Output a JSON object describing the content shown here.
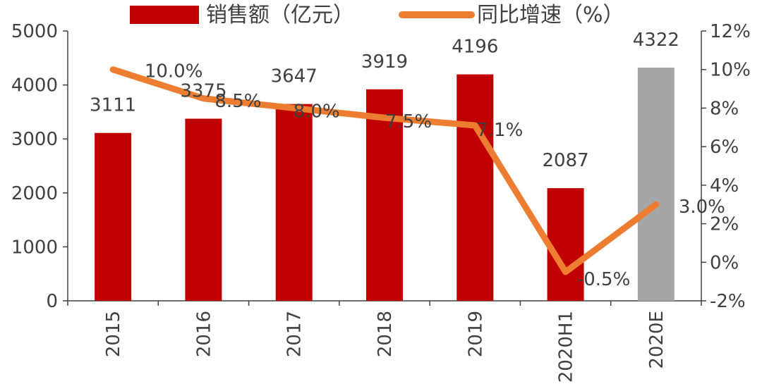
{
  "chart_data": {
    "type": "bar",
    "categories": [
      "2015",
      "2016",
      "2017",
      "2018",
      "2019",
      "2020H1",
      "2020E"
    ],
    "series": [
      {
        "name": "销售额（亿元）",
        "type": "bar",
        "axis": "left",
        "values": [
          3111,
          3375,
          3647,
          3919,
          4196,
          2087,
          4322
        ],
        "labels": [
          "3111",
          "3375",
          "3647",
          "3919",
          "4196",
          "2087",
          "4322"
        ],
        "color": "#c00000",
        "highlight_color": "#a6a6a6",
        "highlight_category": "2020E"
      },
      {
        "name": "同比增速（%）",
        "type": "line",
        "axis": "right",
        "values": [
          10.0,
          8.5,
          8.0,
          7.5,
          7.1,
          -0.5,
          3.0
        ],
        "labels": [
          "10.0%",
          "8.5%",
          "8.0%",
          "7.5%",
          "7.1%",
          "-0.5%",
          "3.0%"
        ],
        "color": "#ed7d31"
      }
    ],
    "yaxis_left": {
      "ylim": [
        0,
        5000
      ],
      "ticks": [
        "0",
        "1000",
        "2000",
        "3000",
        "4000",
        "5000"
      ]
    },
    "yaxis_right": {
      "ylim": [
        -2,
        12
      ],
      "ticks": [
        "-2%",
        "0%",
        "2%",
        "4%",
        "6%",
        "8%",
        "10%",
        "12%"
      ]
    },
    "legend": {
      "position": "top-center"
    },
    "grid": false
  }
}
